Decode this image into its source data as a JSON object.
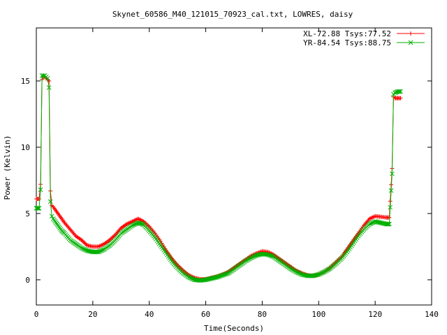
{
  "chart_data": {
    "type": "line",
    "title": "Skynet_60586_M40_121015_70923_cal.txt, LOWRES, daisy",
    "xlabel": "Time(Seconds)",
    "ylabel": "Power (Kelvin)",
    "xlim": [
      0,
      140
    ],
    "ylim": [
      -1.9,
      19
    ],
    "xticks": [
      0,
      20,
      40,
      60,
      80,
      100,
      120,
      140
    ],
    "yticks": [
      0,
      5,
      10,
      15
    ],
    "xtick_labels": [
      "0",
      "20",
      "40",
      "60",
      "80",
      "100",
      "120",
      "140"
    ],
    "ytick_labels": [
      "0",
      "5",
      "10",
      "15"
    ],
    "grid": false,
    "legend_position": "top-right",
    "series": [
      {
        "name": "XL-72.88 Tsys:77.52",
        "color": "#ff0000",
        "marker": "plus",
        "x": [
          0,
          1,
          1.5,
          2,
          2.5,
          3,
          3.5,
          4,
          4.5,
          5,
          5.5,
          6,
          7,
          8,
          9,
          10,
          12,
          14,
          16,
          18,
          20,
          22,
          24,
          26,
          28,
          30,
          32,
          34,
          36,
          37,
          38,
          40,
          42,
          44,
          46,
          48,
          50,
          52,
          54,
          56,
          58,
          60,
          62,
          64,
          66,
          68,
          70,
          72,
          74,
          76,
          78,
          80,
          82,
          84,
          86,
          88,
          90,
          92,
          94,
          96,
          98,
          100,
          102,
          104,
          106,
          108,
          110,
          112,
          114,
          116,
          118,
          120,
          122,
          124,
          125,
          126,
          126.5,
          127,
          128,
          129
        ],
        "y": [
          6.1,
          6.1,
          7.2,
          15.1,
          15.3,
          15.3,
          15.2,
          15.1,
          15.0,
          6.7,
          5.6,
          5.5,
          5.2,
          4.9,
          4.6,
          4.3,
          3.8,
          3.3,
          3.0,
          2.6,
          2.5,
          2.5,
          2.7,
          3.0,
          3.4,
          3.9,
          4.2,
          4.4,
          4.6,
          4.5,
          4.4,
          4.0,
          3.5,
          2.9,
          2.2,
          1.6,
          1.1,
          0.7,
          0.35,
          0.15,
          0.05,
          0.05,
          0.15,
          0.25,
          0.4,
          0.6,
          0.9,
          1.2,
          1.5,
          1.8,
          2.0,
          2.15,
          2.1,
          1.9,
          1.6,
          1.3,
          1.0,
          0.7,
          0.5,
          0.35,
          0.3,
          0.4,
          0.6,
          0.9,
          1.3,
          1.7,
          2.3,
          2.9,
          3.5,
          4.1,
          4.6,
          4.8,
          4.75,
          4.7,
          4.7,
          8.4,
          13.8,
          13.7,
          13.7,
          13.7
        ]
      },
      {
        "name": "YR-84.54 Tsys:88.75",
        "color": "#00b000",
        "marker": "cross",
        "x": [
          0,
          1,
          1.5,
          2,
          2.5,
          3,
          3.5,
          4,
          4.5,
          5,
          5.5,
          6,
          7,
          8,
          9,
          10,
          12,
          14,
          16,
          18,
          20,
          22,
          24,
          26,
          28,
          30,
          32,
          34,
          36,
          37,
          38,
          40,
          42,
          44,
          46,
          48,
          50,
          52,
          54,
          56,
          58,
          60,
          62,
          64,
          66,
          68,
          70,
          72,
          74,
          76,
          78,
          80,
          82,
          84,
          86,
          88,
          90,
          92,
          94,
          96,
          98,
          100,
          102,
          104,
          106,
          108,
          110,
          112,
          114,
          116,
          118,
          120,
          122,
          124,
          125,
          126,
          126.5,
          127,
          128,
          129
        ],
        "y": [
          5.4,
          5.4,
          6.8,
          15.4,
          15.4,
          15.4,
          15.3,
          15.2,
          14.5,
          5.9,
          4.8,
          4.6,
          4.3,
          4.0,
          3.7,
          3.5,
          3.0,
          2.7,
          2.4,
          2.2,
          2.1,
          2.1,
          2.3,
          2.6,
          3.0,
          3.5,
          3.8,
          4.1,
          4.3,
          4.25,
          4.15,
          3.7,
          3.2,
          2.6,
          2.0,
          1.4,
          0.9,
          0.5,
          0.2,
          0.0,
          -0.05,
          0.0,
          0.1,
          0.2,
          0.35,
          0.5,
          0.8,
          1.1,
          1.4,
          1.65,
          1.85,
          1.95,
          1.9,
          1.75,
          1.45,
          1.15,
          0.85,
          0.6,
          0.4,
          0.3,
          0.3,
          0.4,
          0.6,
          0.85,
          1.2,
          1.6,
          2.1,
          2.7,
          3.3,
          3.8,
          4.2,
          4.4,
          4.3,
          4.2,
          4.2,
          8.0,
          14.0,
          14.1,
          14.2,
          14.2
        ]
      }
    ]
  }
}
